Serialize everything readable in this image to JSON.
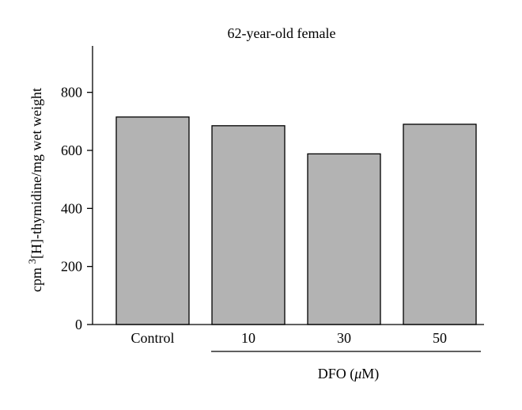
{
  "chart_data": {
    "type": "bar",
    "title": "62-year-old female",
    "ylabel": {
      "prefix": "cpm ",
      "superscript": "3",
      "suffix": "[H]-thymidine/mg wet weight"
    },
    "categories": [
      "Control",
      "10",
      "30",
      "50"
    ],
    "values": [
      715,
      685,
      588,
      690
    ],
    "ylim": [
      0,
      960
    ],
    "yticks": [
      0,
      200,
      400,
      600,
      800
    ],
    "xgroup": {
      "label_prefix": "DFO (",
      "label_symbol": "μ",
      "label_suffix": "M)",
      "covers": [
        "10",
        "30",
        "50"
      ]
    },
    "bar_color": "#b3b3b3",
    "grid": false,
    "legend": "none"
  }
}
